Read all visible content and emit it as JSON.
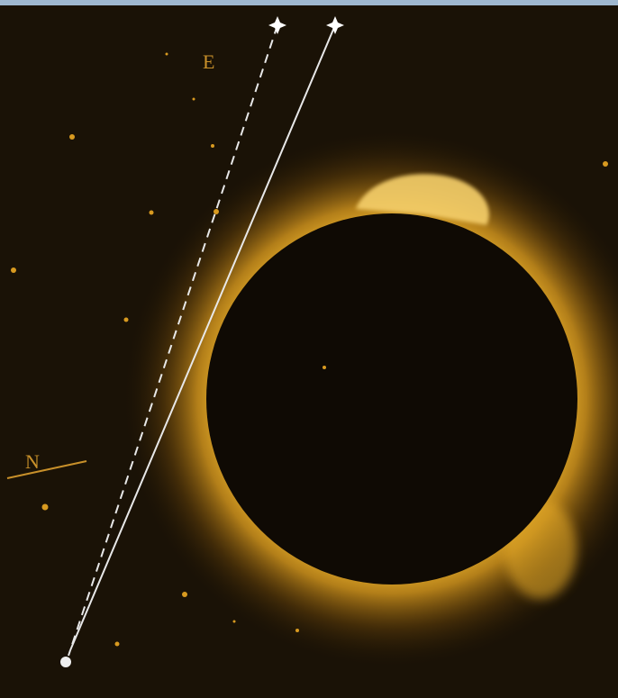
{
  "labels": {
    "east": "E",
    "north": "N"
  }
}
